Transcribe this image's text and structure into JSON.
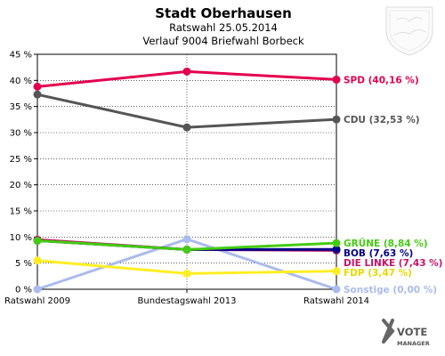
{
  "chart_data": {
    "type": "line",
    "title": "Stadt Oberhausen",
    "subtitle": "Ratswahl 25.05.2014",
    "subtitle2": "Verlauf 9004 Briefwahl Borbeck",
    "categories": [
      "Ratswahl 2009",
      "Bundestagswahl 2013",
      "Ratswahl 2014"
    ],
    "ylim": [
      0,
      45
    ],
    "yticks": [
      0,
      5,
      10,
      15,
      20,
      25,
      30,
      35,
      40,
      45
    ],
    "ytick_labels": [
      "0 %",
      "5 %",
      "10 %",
      "15 %",
      "20 %",
      "25 %",
      "30 %",
      "35 %",
      "40 %",
      "45 %"
    ],
    "grid": true,
    "series": [
      {
        "name": "SPD",
        "values": [
          38.8,
          41.7,
          40.16
        ],
        "color": "#e3004f",
        "end_label": "SPD (40,16 %)"
      },
      {
        "name": "CDU",
        "values": [
          37.3,
          31.0,
          32.53
        ],
        "color": "#555555",
        "end_label": "CDU (32,53 %)"
      },
      {
        "name": "GRÜNE",
        "values": [
          9.3,
          7.6,
          8.84
        ],
        "color": "#44cc11",
        "end_label": "GRÜNE (8,84 %)"
      },
      {
        "name": "BOB",
        "values": [
          9.3,
          7.6,
          7.63
        ],
        "color": "#000088",
        "end_label": "BOB (7,63 %)"
      },
      {
        "name": "DIE LINKE",
        "values": [
          9.5,
          7.6,
          7.43
        ],
        "color": "#cc1166",
        "end_label": "DIE LINKE (7,43 %)"
      },
      {
        "name": "FDP",
        "values": [
          5.5,
          3.0,
          3.47
        ],
        "color": "#ffee22",
        "end_label": "FDP (3,47 %)"
      },
      {
        "name": "Sonstige",
        "values": [
          0.0,
          9.6,
          0.0
        ],
        "color": "#aabbee",
        "end_label": "Sonstige (0,00 %)"
      }
    ]
  },
  "branding": {
    "logo_text_top": "VOTE",
    "logo_text_bottom": "MANAGER",
    "crest_icon": "city-coat-of-arms-icon"
  }
}
